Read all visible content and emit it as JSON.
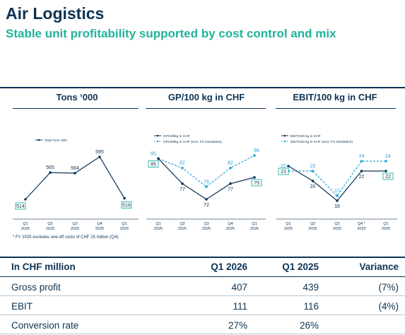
{
  "header": {
    "title": "Air Logistics",
    "subtitle": "Stable unit profitability supported by cost control and mix"
  },
  "colors": {
    "navy": "#0d3353",
    "teal": "#20b39a",
    "light_blue": "#2aa3d8"
  },
  "chart_data": [
    {
      "type": "line",
      "title": "Tons ‘000",
      "categories": [
        "Q1\n2025",
        "Q2\n2025",
        "Q3\n2025",
        "Q4\n2025",
        "Q1\n2026"
      ],
      "series": [
        {
          "name": "Total Tons '000",
          "values": [
            514,
            565,
            564,
            595,
            516
          ]
        }
      ],
      "ylim": [
        480,
        620
      ],
      "boxed_points": [
        0,
        4
      ],
      "legend": "top-left",
      "grid": false
    },
    {
      "type": "line",
      "title": "GP/100 kg in CHF",
      "categories": [
        "Q1\n2025",
        "Q2\n2025",
        "Q3\n2025",
        "Q4\n2025",
        "Q1\n2026"
      ],
      "series": [
        {
          "name": "GP/100kg in CHF",
          "values": [
            85,
            77,
            72,
            77,
            79
          ]
        },
        {
          "name": "GP/100kg in CHF (excl. FX translation)",
          "values": [
            85,
            82,
            76,
            82,
            86
          ],
          "dashed": true
        }
      ],
      "ylim": [
        55,
        100
      ],
      "boxed_points": [
        0,
        4
      ],
      "legend": "top-left",
      "grid": false
    },
    {
      "type": "line",
      "title": "EBIT/100 kg in CHF",
      "categories": [
        "Q1\n2025",
        "Q2\n2025",
        "Q3\n2025",
        "Q4 *\n2025",
        "Q1\n2026"
      ],
      "series": [
        {
          "name": "EBIT/100 kg in CHF",
          "values": [
            23,
            20,
            16,
            22,
            22
          ]
        },
        {
          "name": "EBIT/100 kg in CHF (excl. FX translation)",
          "values": [
            22,
            22,
            17,
            24,
            24
          ],
          "dashed": true
        }
      ],
      "ylim": [
        5,
        35
      ],
      "boxed_points": [
        0,
        4
      ],
      "legend": "top-left",
      "grid": false
    }
  ],
  "footnote": "* FY 2025 excludes one-off costs of CHF 25 million (Q4).",
  "table": {
    "headers": [
      "In CHF million",
      "Q1 2026",
      "Q1 2025",
      "Variance"
    ],
    "rows": [
      [
        "Gross profit",
        "407",
        "439",
        "(7%)"
      ],
      [
        "EBIT",
        "111",
        "116",
        "(4%)"
      ],
      [
        "Conversion rate",
        "27%",
        "26%",
        ""
      ]
    ]
  }
}
